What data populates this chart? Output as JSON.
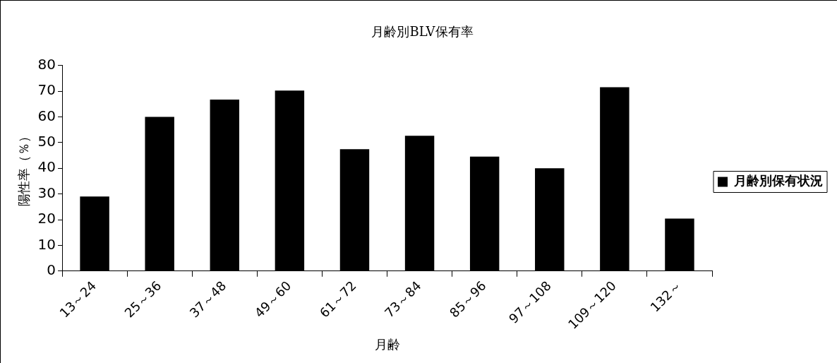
{
  "chart_data": {
    "type": "bar",
    "title": "月齢別BLV保有率",
    "xlabel": "月齢",
    "ylabel": "陽性率（％）",
    "categories": [
      "13～24",
      "25～36",
      "37～48",
      "49～60",
      "61～72",
      "73～84",
      "85～96",
      "97～108",
      "109～120",
      "132～"
    ],
    "series": [
      {
        "name": "月齢別保有状況",
        "color": "#000000",
        "values": [
          29,
          60,
          66.7,
          70.2,
          47.4,
          52.6,
          44.5,
          40,
          71.5,
          20.4
        ]
      }
    ],
    "ylim": [
      0,
      80
    ],
    "yticks": [
      0,
      10,
      20,
      30,
      40,
      50,
      60,
      70,
      80
    ],
    "grid": false,
    "legend": "right"
  }
}
